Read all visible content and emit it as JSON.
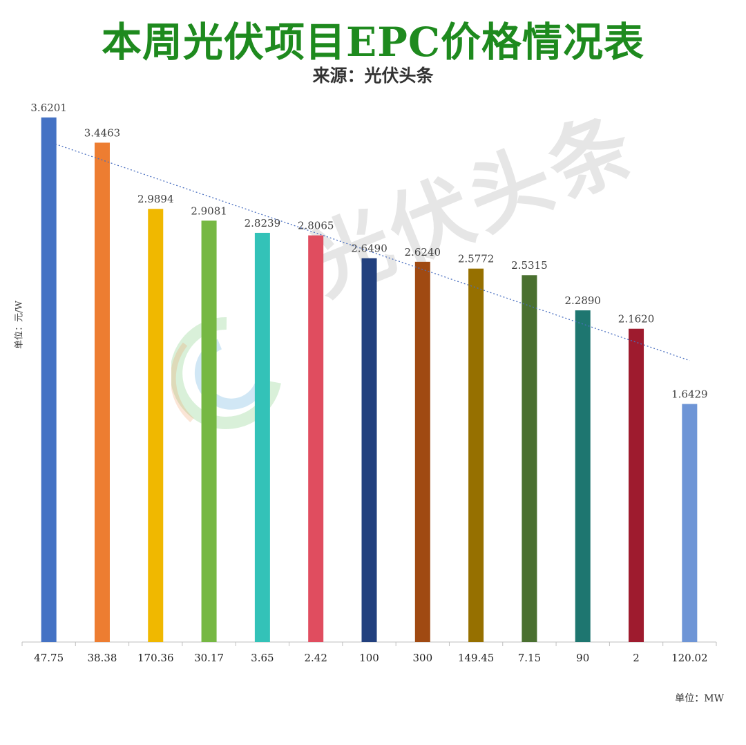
{
  "title": "本周光伏项目EPC价格情况表",
  "subtitle": "来源：光伏头条",
  "watermark_text": "光伏头条",
  "y_axis_label": "单位：元/W",
  "x_axis_unit": "单位：MW",
  "colors": {
    "title": "#1e8a1e",
    "trendline": "#4a6fc0",
    "axis": "#bfbfbf"
  },
  "chart_data": {
    "type": "bar",
    "title": "本周光伏项目EPC价格情况表",
    "subtitle": "来源：光伏头条",
    "ylabel": "单位：元/W",
    "xlabel": "单位：MW",
    "categories": [
      "47.75",
      "38.38",
      "170.36",
      "30.17",
      "3.65",
      "2.42",
      "100",
      "300",
      "149.45",
      "7.15",
      "90",
      "2",
      "120.02"
    ],
    "values": [
      3.6201,
      3.4463,
      2.9894,
      2.9081,
      2.8239,
      2.8065,
      2.649,
      2.624,
      2.5772,
      2.5315,
      2.289,
      2.162,
      1.6429
    ],
    "value_labels": [
      "3.6201",
      "3.4463",
      "2.9894",
      "2.9081",
      "2.8239",
      "2.8065",
      "2.6490",
      "2.6240",
      "2.5772",
      "2.5315",
      "2.2890",
      "2.1620",
      "1.6429"
    ],
    "bar_colors": [
      "#4472c4",
      "#ed7d31",
      "#f0b800",
      "#76b843",
      "#33c2b8",
      "#e04d5f",
      "#22407e",
      "#a04a12",
      "#967000",
      "#4a7030",
      "#1e7670",
      "#9e1b2e",
      "#6e95d6"
    ],
    "trendline": {
      "type": "linear",
      "style": "dotted"
    },
    "ylim": [
      0,
      3.8
    ],
    "grid": false,
    "legend": "none"
  }
}
